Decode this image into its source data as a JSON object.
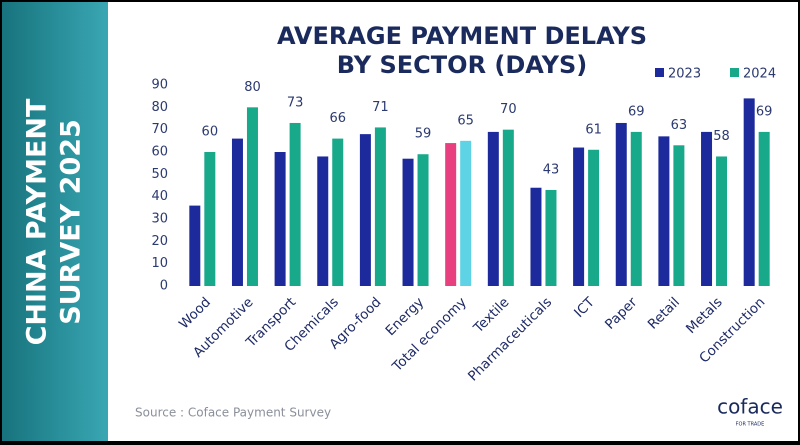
{
  "panel": {
    "lines": [
      "CHINA PAYMENT",
      "SURVEY 2025"
    ]
  },
  "logo": {
    "name": "coface",
    "tagline": "FOR TRADE"
  },
  "chart_data": {
    "type": "bar",
    "title_lines": [
      "AVERAGE PAYMENT DELAYS",
      "BY SECTOR (DAYS)"
    ],
    "source": "Source : Coface Payment Survey",
    "categories": [
      "Wood",
      "Automotive",
      "Transport",
      "Chemicals",
      "Agro-food",
      "Energy",
      "Total economy",
      "Textile",
      "Pharmaceuticals",
      "ICT",
      "Paper",
      "Retail",
      "Metals",
      "Construction"
    ],
    "series": [
      {
        "name": "2023",
        "color": "#1c2a9c",
        "show_labels": false,
        "colors": [
          "#1c2a9c",
          "#1c2a9c",
          "#1c2a9c",
          "#1c2a9c",
          "#1c2a9c",
          "#1c2a9c",
          "#e8407f",
          "#1c2a9c",
          "#1c2a9c",
          "#1c2a9c",
          "#1c2a9c",
          "#1c2a9c",
          "#1c2a9c",
          "#1c2a9c"
        ],
        "values": [
          36,
          66,
          60,
          58,
          68,
          57,
          64,
          69,
          44,
          62,
          73,
          67,
          69,
          84
        ]
      },
      {
        "name": "2024",
        "color": "#17a98a",
        "show_labels": true,
        "colors": [
          "#17a98a",
          "#17a98a",
          "#17a98a",
          "#17a98a",
          "#17a98a",
          "#17a98a",
          "#5fd3e6",
          "#17a98a",
          "#17a98a",
          "#17a98a",
          "#17a98a",
          "#17a98a",
          "#17a98a",
          "#17a98a"
        ],
        "values": [
          60,
          80,
          73,
          66,
          71,
          59,
          65,
          70,
          43,
          61,
          69,
          63,
          58,
          69
        ]
      }
    ],
    "ylim": [
      0,
      90
    ],
    "yticks": [
      0,
      10,
      20,
      30,
      40,
      50,
      60,
      70,
      80,
      90
    ],
    "grid": false
  }
}
